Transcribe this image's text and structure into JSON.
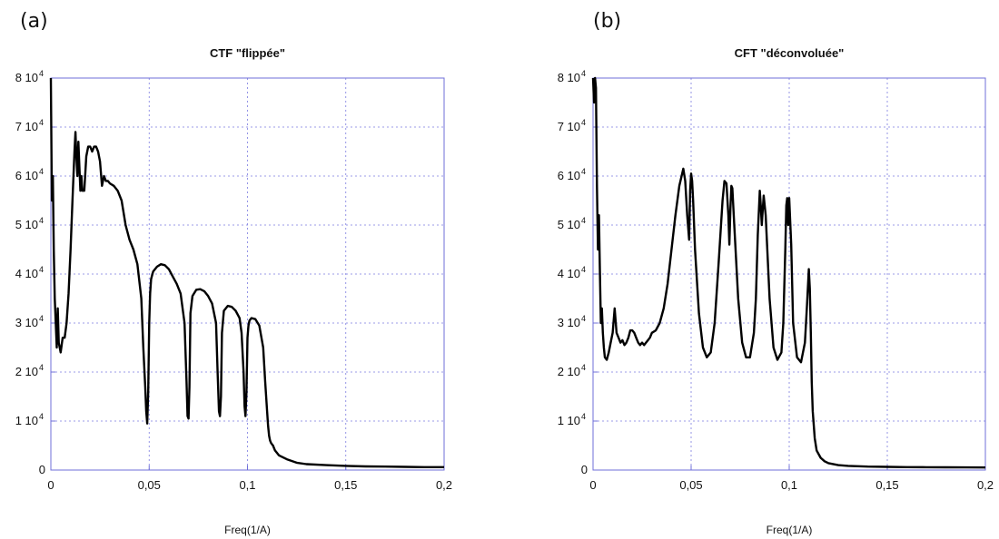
{
  "chart_data": [
    {
      "panel_label": "(a)",
      "type": "line",
      "title": "CTF \"flippée\"",
      "xlabel": "Freq(1/A)",
      "ylabel": "",
      "xlim": [
        0,
        0.2
      ],
      "ylim": [
        0,
        80000
      ],
      "grid": true,
      "x_ticks": [
        0,
        0.05,
        0.1,
        0.15,
        0.2
      ],
      "x_tick_labels": [
        "0",
        "0,05",
        "0,1",
        "0,15",
        "0,2"
      ],
      "y_ticks": [
        0,
        10000,
        20000,
        30000,
        40000,
        50000,
        60000,
        70000,
        80000
      ],
      "y_tick_labels": [
        "0",
        "1 10",
        "2 10",
        "3 10",
        "4 10",
        "5 10",
        "6 10",
        "7 10",
        "8 10"
      ],
      "y_tick_exponents": [
        "",
        "4",
        "4",
        "4",
        "4",
        "4",
        "4",
        "4",
        "4"
      ],
      "series": [
        {
          "x": [
            0.0,
            0.0005,
            0.001,
            0.0015,
            0.002,
            0.0025,
            0.003,
            0.0035,
            0.004,
            0.005,
            0.006,
            0.007,
            0.008,
            0.009,
            0.01,
            0.011,
            0.012,
            0.0125,
            0.013,
            0.0135,
            0.014,
            0.0145,
            0.015,
            0.0155,
            0.016,
            0.017,
            0.018,
            0.019,
            0.02,
            0.021,
            0.022,
            0.023,
            0.024,
            0.025,
            0.026,
            0.027,
            0.028,
            0.029,
            0.03,
            0.032,
            0.034,
            0.036,
            0.038,
            0.04,
            0.042,
            0.044,
            0.046,
            0.047,
            0.048,
            0.0485,
            0.049,
            0.0495,
            0.05,
            0.0505,
            0.051,
            0.052,
            0.054,
            0.056,
            0.058,
            0.06,
            0.062,
            0.064,
            0.066,
            0.068,
            0.069,
            0.0695,
            0.07,
            0.0705,
            0.071,
            0.072,
            0.074,
            0.076,
            0.078,
            0.08,
            0.082,
            0.084,
            0.0848,
            0.0855,
            0.086,
            0.0865,
            0.087,
            0.088,
            0.09,
            0.092,
            0.094,
            0.096,
            0.097,
            0.098,
            0.0985,
            0.099,
            0.0995,
            0.1,
            0.1005,
            0.101,
            0.102,
            0.104,
            0.106,
            0.108,
            0.109,
            0.11,
            0.1105,
            0.111,
            0.1115,
            0.112,
            0.113,
            0.114,
            0.116,
            0.12,
            0.125,
            0.13,
            0.14,
            0.15,
            0.16,
            0.17,
            0.18,
            0.19,
            0.2
          ],
          "y": [
            80000,
            55000,
            60000,
            45000,
            35000,
            30000,
            25000,
            33000,
            26000,
            24000,
            27000,
            27000,
            30000,
            36000,
            45000,
            55000,
            65000,
            69000,
            64000,
            60000,
            67000,
            62000,
            57000,
            60000,
            57000,
            57000,
            64000,
            66000,
            66000,
            65000,
            66000,
            66000,
            65000,
            63000,
            58000,
            60000,
            59000,
            59000,
            58500,
            58000,
            57000,
            55000,
            50000,
            47000,
            45000,
            42000,
            35000,
            25000,
            17000,
            12000,
            9500,
            16000,
            30000,
            36000,
            39000,
            40500,
            41500,
            42000,
            41800,
            41000,
            39500,
            38000,
            36000,
            30000,
            18000,
            11000,
            10500,
            17000,
            32000,
            35500,
            36800,
            36900,
            36500,
            35500,
            34000,
            30000,
            20000,
            12000,
            11000,
            15000,
            28000,
            32500,
            33500,
            33300,
            32500,
            31000,
            28000,
            20000,
            13000,
            11000,
            16000,
            27000,
            29500,
            30500,
            31000,
            30800,
            29500,
            25000,
            18000,
            12000,
            9000,
            7000,
            6000,
            5500,
            5000,
            4000,
            3000,
            2200,
            1500,
            1200,
            1000,
            850,
            750,
            700,
            650,
            600,
            600
          ]
        }
      ]
    },
    {
      "panel_label": "(b)",
      "type": "line",
      "title": "CFT \"déconvoluée\"",
      "xlabel": "Freq(1/A)",
      "ylabel": "",
      "xlim": [
        0,
        0.2
      ],
      "ylim": [
        0,
        80000
      ],
      "grid": true,
      "x_ticks": [
        0,
        0.05,
        0.1,
        0.15,
        0.2
      ],
      "x_tick_labels": [
        "0",
        "0,05",
        "0,1",
        "0,15",
        "0,2"
      ],
      "y_ticks": [
        0,
        10000,
        20000,
        30000,
        40000,
        50000,
        60000,
        70000,
        80000
      ],
      "y_tick_labels": [
        "0",
        "1 10",
        "2 10",
        "3 10",
        "4 10",
        "5 10",
        "6 10",
        "7 10",
        "8 10"
      ],
      "y_tick_exponents": [
        "",
        "4",
        "4",
        "4",
        "4",
        "4",
        "4",
        "4",
        "4"
      ],
      "series": [
        {
          "x": [
            0.0,
            0.0005,
            0.001,
            0.0015,
            0.002,
            0.0025,
            0.003,
            0.0035,
            0.004,
            0.0045,
            0.005,
            0.0055,
            0.006,
            0.007,
            0.008,
            0.009,
            0.01,
            0.011,
            0.012,
            0.013,
            0.014,
            0.015,
            0.016,
            0.017,
            0.018,
            0.019,
            0.02,
            0.021,
            0.022,
            0.023,
            0.024,
            0.025,
            0.026,
            0.027,
            0.028,
            0.029,
            0.03,
            0.032,
            0.034,
            0.036,
            0.038,
            0.04,
            0.042,
            0.044,
            0.046,
            0.047,
            0.048,
            0.049,
            0.0495,
            0.05,
            0.0505,
            0.051,
            0.052,
            0.054,
            0.056,
            0.058,
            0.06,
            0.062,
            0.064,
            0.066,
            0.067,
            0.068,
            0.069,
            0.0695,
            0.07,
            0.0705,
            0.071,
            0.072,
            0.074,
            0.076,
            0.078,
            0.08,
            0.082,
            0.083,
            0.084,
            0.085,
            0.0855,
            0.086,
            0.0865,
            0.087,
            0.088,
            0.09,
            0.092,
            0.094,
            0.096,
            0.097,
            0.098,
            0.0985,
            0.099,
            0.0995,
            0.1,
            0.101,
            0.102,
            0.104,
            0.106,
            0.108,
            0.109,
            0.11,
            0.1105,
            0.111,
            0.1115,
            0.112,
            0.113,
            0.114,
            0.116,
            0.118,
            0.12,
            0.125,
            0.13,
            0.14,
            0.15,
            0.16,
            0.17,
            0.18,
            0.19,
            0.2
          ],
          "y": [
            80000,
            75000,
            80000,
            78000,
            58000,
            45000,
            52000,
            40000,
            30000,
            33000,
            28000,
            25000,
            23000,
            22500,
            24000,
            26000,
            28000,
            33000,
            28000,
            27000,
            26000,
            26500,
            25500,
            26000,
            27000,
            28500,
            28500,
            28000,
            27000,
            26000,
            25500,
            26000,
            25500,
            26000,
            26500,
            27000,
            28000,
            28500,
            30000,
            33000,
            38000,
            45000,
            52000,
            58000,
            61500,
            59000,
            52000,
            47000,
            57000,
            60500,
            59000,
            55000,
            45000,
            32000,
            25000,
            23000,
            24000,
            30000,
            42000,
            55000,
            59000,
            58500,
            52000,
            46000,
            53000,
            58000,
            57500,
            50000,
            35000,
            26000,
            23000,
            23000,
            28000,
            35000,
            48000,
            57000,
            54000,
            50000,
            53000,
            56000,
            52000,
            35000,
            25000,
            22500,
            24000,
            30000,
            45000,
            54000,
            55500,
            50000,
            55500,
            46000,
            30000,
            23000,
            22000,
            26000,
            33000,
            41000,
            37000,
            28000,
            18000,
            12000,
            6500,
            4000,
            2500,
            1800,
            1400,
            1000,
            850,
            700,
            650,
            600,
            580,
            560,
            540,
            520
          ]
        }
      ]
    }
  ]
}
